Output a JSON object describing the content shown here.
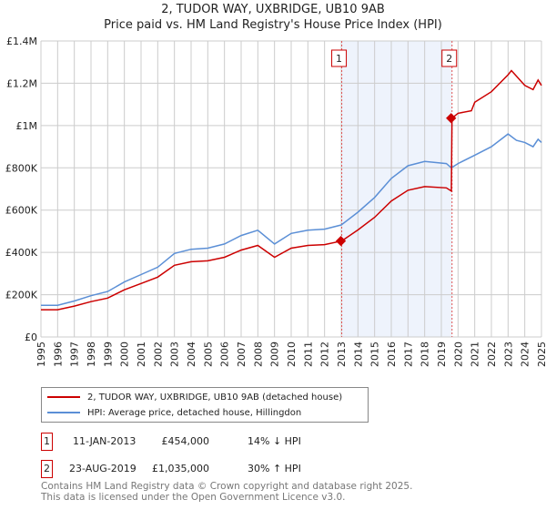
{
  "chart_data": {
    "type": "line",
    "title": "2, TUDOR WAY, UXBRIDGE, UB10 9AB",
    "subtitle": "Price paid vs. HM Land Registry's House Price Index (HPI)",
    "xlim": [
      1995,
      2025
    ],
    "ylim": [
      0,
      1400000
    ],
    "x_ticks": [
      "1995",
      "1996",
      "1997",
      "1998",
      "1999",
      "2000",
      "2001",
      "2002",
      "2003",
      "2004",
      "2005",
      "2006",
      "2007",
      "2008",
      "2009",
      "2010",
      "2011",
      "2012",
      "2013",
      "2014",
      "2015",
      "2016",
      "2017",
      "2018",
      "2019",
      "2020",
      "2021",
      "2022",
      "2023",
      "2024",
      "2025"
    ],
    "y_ticks": [
      {
        "v": 0,
        "label": "£0"
      },
      {
        "v": 200000,
        "label": "£200K"
      },
      {
        "v": 400000,
        "label": "£400K"
      },
      {
        "v": 600000,
        "label": "£600K"
      },
      {
        "v": 800000,
        "label": "£800K"
      },
      {
        "v": 1000000,
        "label": "£1M"
      },
      {
        "v": 1200000,
        "label": "£1.2M"
      },
      {
        "v": 1400000,
        "label": "£1.4M"
      }
    ],
    "grid": true,
    "shaded_range": [
      2013.03,
      2019.64
    ],
    "series": [
      {
        "name": "2, TUDOR WAY, UXBRIDGE, UB10 9AB (detached house)",
        "color": "#cc0000",
        "x": [
          1995,
          1996,
          1997,
          1998,
          1999,
          2000,
          2001,
          2002,
          2003,
          2004,
          2005,
          2006,
          2007,
          2008,
          2009,
          2010,
          2011,
          2012,
          2013.03,
          2014,
          2015,
          2016,
          2017,
          2018,
          2019.3,
          2019.6,
          2019.64,
          2020,
          2020.8,
          2021,
          2022,
          2023,
          2023.2,
          2024,
          2024.5,
          2024.8,
          2025
        ],
        "y": [
          129000,
          129000,
          146000,
          167000,
          184000,
          223000,
          253000,
          283000,
          339000,
          356000,
          360000,
          377000,
          411000,
          433000,
          377000,
          420000,
          433000,
          437000,
          454000,
          506000,
          566000,
          643000,
          694000,
          711000,
          705000,
          690000,
          1035000,
          1058000,
          1070000,
          1110000,
          1160000,
          1240000,
          1260000,
          1190000,
          1170000,
          1215000,
          1190000
        ]
      },
      {
        "name": "HPI: Average price, detached house, Hillingdon",
        "color": "#5b8fd6",
        "x": [
          1995,
          1996,
          1997,
          1998,
          1999,
          2000,
          2001,
          2002,
          2003,
          2004,
          2005,
          2006,
          2007,
          2008,
          2009,
          2010,
          2011,
          2012,
          2013,
          2014,
          2015,
          2016,
          2017,
          2018,
          2019.3,
          2019.6,
          2020,
          2021,
          2022,
          2023,
          2023.5,
          2024,
          2024.5,
          2024.8,
          2025
        ],
        "y": [
          150000,
          150000,
          170000,
          195000,
          215000,
          260000,
          295000,
          330000,
          395000,
          415000,
          420000,
          440000,
          480000,
          505000,
          440000,
          490000,
          505000,
          510000,
          530000,
          590000,
          660000,
          750000,
          810000,
          830000,
          820000,
          800000,
          820000,
          860000,
          900000,
          960000,
          930000,
          920000,
          900000,
          935000,
          920000
        ]
      }
    ],
    "annotations": [
      {
        "label": "1",
        "x": 2013.03,
        "y": 454000
      },
      {
        "label": "2",
        "x": 2019.64,
        "y": 1035000
      }
    ],
    "legend_placement": "below"
  },
  "transactions": [
    {
      "num": "1",
      "date": "11-JAN-2013",
      "price": "£454,000",
      "hpi": "14% ↓ HPI"
    },
    {
      "num": "2",
      "date": "23-AUG-2019",
      "price": "£1,035,000",
      "hpi": "30% ↑ HPI"
    }
  ],
  "footer": [
    "Contains HM Land Registry data © Crown copyright and database right 2025.",
    "This data is licensed under the Open Government Licence v3.0."
  ]
}
